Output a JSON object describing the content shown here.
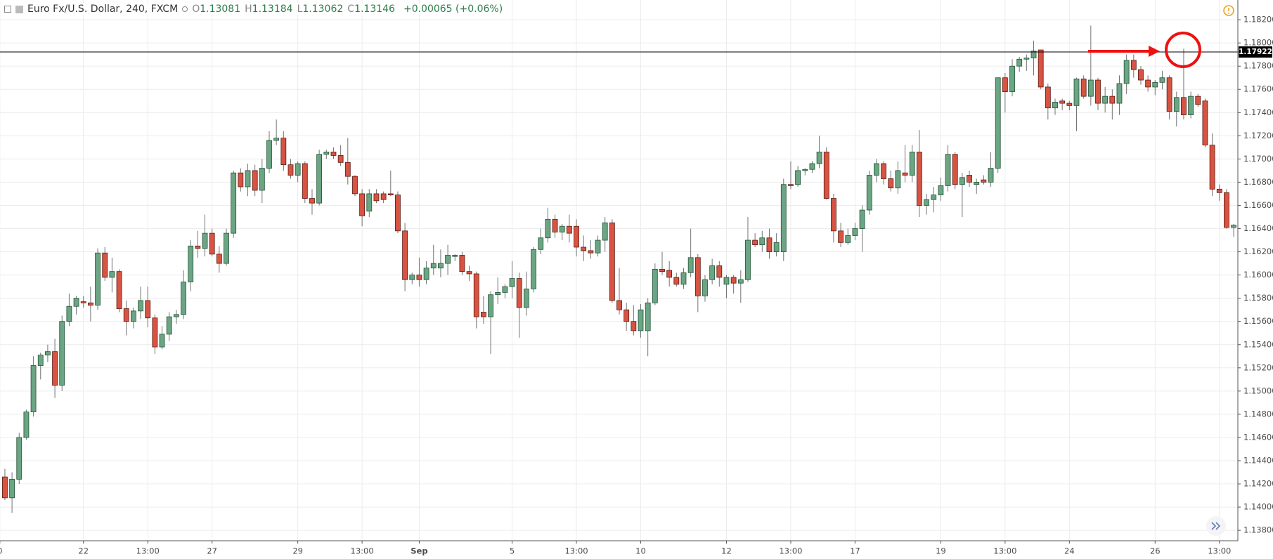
{
  "chart_data": {
    "type": "candlestick",
    "title": "Euro Fx/U.S. Dollar, 240, FXCM",
    "ohlc": [
      {
        "key": "O",
        "value": "1.13081"
      },
      {
        "key": "H",
        "value": "1.13184"
      },
      {
        "key": "L",
        "value": "1.13062"
      },
      {
        "key": "C",
        "value": "1.13146"
      }
    ],
    "change": "+0.00065 (+0.06%)",
    "up_color": "#6ba583",
    "down_color": "#d75442",
    "ylim": [
      1.1371,
      1.1837
    ],
    "yticks": [
      {
        "value": 1.138,
        "label": "1.13800"
      },
      {
        "value": 1.14,
        "label": "1.14000"
      },
      {
        "value": 1.142,
        "label": "1.14200"
      },
      {
        "value": 1.144,
        "label": "1.14400"
      },
      {
        "value": 1.146,
        "label": "1.14600"
      },
      {
        "value": 1.148,
        "label": "1.14800"
      },
      {
        "value": 1.15,
        "label": "1.15000"
      },
      {
        "value": 1.152,
        "label": "1.15200"
      },
      {
        "value": 1.154,
        "label": "1.15400"
      },
      {
        "value": 1.156,
        "label": "1.15600"
      },
      {
        "value": 1.158,
        "label": "1.15800"
      },
      {
        "value": 1.16,
        "label": "1.16000"
      },
      {
        "value": 1.162,
        "label": "1.16200"
      },
      {
        "value": 1.164,
        "label": "1.16400"
      },
      {
        "value": 1.166,
        "label": "1.16600"
      },
      {
        "value": 1.168,
        "label": "1.16800"
      },
      {
        "value": 1.17,
        "label": "1.17000"
      },
      {
        "value": 1.172,
        "label": "1.17200"
      },
      {
        "value": 1.174,
        "label": "1.17400"
      },
      {
        "value": 1.176,
        "label": "1.17600"
      },
      {
        "value": 1.178,
        "label": "1.17800"
      },
      {
        "value": 1.18,
        "label": "1.18000"
      },
      {
        "value": 1.182,
        "label": "1.18200"
      }
    ],
    "xticks": [
      {
        "value": -0.7,
        "label": "0"
      },
      {
        "value": 11,
        "label": "22"
      },
      {
        "value": 20,
        "label": "13:00"
      },
      {
        "value": 29,
        "label": "27"
      },
      {
        "value": 41,
        "label": "29"
      },
      {
        "value": 50,
        "label": "13:00"
      },
      {
        "value": 58,
        "label": "Sep"
      },
      {
        "value": 71,
        "label": "5"
      },
      {
        "value": 80,
        "label": "13:00"
      },
      {
        "value": 89,
        "label": "10"
      },
      {
        "value": 101,
        "label": "12"
      },
      {
        "value": 110,
        "label": "13:00"
      },
      {
        "value": 119,
        "label": "17"
      },
      {
        "value": 131,
        "label": "19"
      },
      {
        "value": 140,
        "label": "13:00"
      },
      {
        "value": 149,
        "label": "24"
      },
      {
        "value": 161,
        "label": "26"
      },
      {
        "value": 170,
        "label": "13:00"
      }
    ],
    "grid": true,
    "hline": {
      "value": 1.17922,
      "label": "1.17922"
    },
    "open": [
      1.1426,
      1.1408,
      1.1424,
      1.146,
      1.1482,
      1.1522,
      1.1531,
      1.1534,
      1.1505,
      1.156,
      1.1573,
      1.1577,
      1.1576,
      1.1574,
      1.1619,
      1.1598,
      1.1603,
      1.1571,
      1.156,
      1.1569,
      1.1578,
      1.1563,
      1.1538,
      1.1549,
      1.1564,
      1.1566,
      1.1594,
      1.1625,
      1.1623,
      1.1636,
      1.1618,
      1.161,
      1.1636,
      1.1688,
      1.1676,
      1.169,
      1.1673,
      1.1692,
      1.1716,
      1.1718,
      1.1695,
      1.1686,
      1.1696,
      1.1666,
      1.1662,
      1.1704,
      1.1706,
      1.1703,
      1.1697,
      1.1685,
      1.167,
      1.1655,
      1.167,
      1.167,
      1.167,
      1.1669,
      1.1638,
      1.1596,
      1.16,
      1.1596,
      1.1606,
      1.1606,
      1.161,
      1.1616,
      1.1617,
      1.1603,
      1.1601,
      1.1568,
      1.1564,
      1.1583,
      1.1585,
      1.159,
      1.1597,
      1.1572,
      1.1588,
      1.1622,
      1.1632,
      1.1648,
      1.1637,
      1.1642,
      1.1642,
      1.1624,
      1.1621,
      1.1619,
      1.163,
      1.1645,
      1.1578,
      1.157,
      1.156,
      1.1552,
      1.1552,
      1.1576,
      1.1605,
      1.1604,
      1.1598,
      1.1592,
      1.1602,
      1.1615,
      1.1582,
      1.1596,
      1.1608,
      1.1592,
      1.1598,
      1.1593,
      1.1596,
      1.163,
      1.1626,
      1.1632,
      1.162,
      1.162,
      1.1678,
      1.1678,
      1.169,
      1.1691,
      1.1696,
      1.1706,
      1.1666,
      1.1638,
      1.1628,
      1.1634,
      1.164,
      1.1656,
      1.1686,
      1.1696,
      1.1683,
      1.1675,
      1.1688,
      1.1686,
      1.1706,
      1.166,
      1.1665,
      1.1669,
      1.1677,
      1.1704,
      1.1678,
      1.1686,
      1.1678,
      1.1682,
      1.168,
      1.1692,
      1.177,
      1.1758,
      1.178,
      1.1786,
      1.1787,
      1.1794,
      1.1762,
      1.1744,
      1.175,
      1.1748,
      1.1746,
      1.1769,
      1.1754,
      1.1768,
      1.1748,
      1.1754,
      1.1748,
      1.1765,
      1.1785,
      1.1777,
      1.1768,
      1.1762,
      1.1766,
      1.177,
      1.1741,
      1.1753,
      1.1738,
      1.1754,
      1.175,
      1.1712,
      1.1674,
      1.1671,
      1.1641
    ],
    "high": [
      1.1433,
      1.143,
      1.1464,
      1.1484,
      1.153,
      1.1533,
      1.154,
      1.1545,
      1.1565,
      1.1584,
      1.1582,
      1.1582,
      1.159,
      1.1623,
      1.1624,
      1.1615,
      1.1605,
      1.1578,
      1.1572,
      1.159,
      1.159,
      1.1566,
      1.1556,
      1.1568,
      1.157,
      1.1604,
      1.163,
      1.1638,
      1.1652,
      1.164,
      1.1625,
      1.164,
      1.169,
      1.1692,
      1.1696,
      1.1695,
      1.17,
      1.1724,
      1.1734,
      1.1724,
      1.17,
      1.1698,
      1.1698,
      1.1674,
      1.1708,
      1.1708,
      1.171,
      1.1712,
      1.1718,
      1.1686,
      1.1674,
      1.1674,
      1.1674,
      1.1672,
      1.169,
      1.1672,
      1.1645,
      1.1602,
      1.1615,
      1.1612,
      1.1626,
      1.1622,
      1.1626,
      1.1618,
      1.162,
      1.1608,
      1.1603,
      1.1582,
      1.1586,
      1.1598,
      1.1592,
      1.1612,
      1.1602,
      1.1603,
      1.1624,
      1.164,
      1.1658,
      1.1652,
      1.1644,
      1.1652,
      1.1648,
      1.1634,
      1.163,
      1.1634,
      1.165,
      1.1648,
      1.1606,
      1.1576,
      1.1574,
      1.1575,
      1.158,
      1.161,
      1.162,
      1.1612,
      1.1602,
      1.1606,
      1.164,
      1.1618,
      1.16,
      1.1614,
      1.1612,
      1.16,
      1.16,
      1.1604,
      1.165,
      1.1636,
      1.1638,
      1.164,
      1.1636,
      1.1683,
      1.1698,
      1.1694,
      1.1692,
      1.1698,
      1.172,
      1.171,
      1.167,
      1.1645,
      1.164,
      1.1645,
      1.166,
      1.169,
      1.17,
      1.1698,
      1.169,
      1.1698,
      1.1712,
      1.1712,
      1.1725,
      1.167,
      1.1676,
      1.1684,
      1.1712,
      1.1706,
      1.1688,
      1.169,
      1.1683,
      1.1686,
      1.1706,
      1.177,
      1.1774,
      1.1786,
      1.1788,
      1.179,
      1.1802,
      1.1794,
      1.1765,
      1.1752,
      1.1752,
      1.175,
      1.177,
      1.1772,
      1.1815,
      1.177,
      1.1762,
      1.176,
      1.1772,
      1.179,
      1.179,
      1.178,
      1.1772,
      1.1768,
      1.1776,
      1.1772,
      1.1758,
      1.1795,
      1.1758,
      1.1756,
      1.1752,
      1.1722,
      1.1678,
      1.1674,
      1.1644
    ],
    "low": [
      1.1406,
      1.1395,
      1.142,
      1.1458,
      1.1478,
      1.151,
      1.1525,
      1.1494,
      1.15,
      1.1556,
      1.1566,
      1.1572,
      1.156,
      1.157,
      1.1595,
      1.1585,
      1.1568,
      1.1548,
      1.1554,
      1.1562,
      1.1555,
      1.1532,
      1.1536,
      1.1543,
      1.1558,
      1.1562,
      1.1586,
      1.1615,
      1.1616,
      1.1616,
      1.1602,
      1.1608,
      1.1632,
      1.1672,
      1.1668,
      1.1668,
      1.1662,
      1.1688,
      1.1712,
      1.169,
      1.1683,
      1.168,
      1.1662,
      1.1652,
      1.166,
      1.17,
      1.17,
      1.1694,
      1.1678,
      1.1668,
      1.1642,
      1.165,
      1.1662,
      1.1662,
      1.1668,
      1.1636,
      1.1586,
      1.1592,
      1.159,
      1.1592,
      1.16,
      1.1598,
      1.16,
      1.1612,
      1.16,
      1.1595,
      1.1554,
      1.1558,
      1.1532,
      1.1575,
      1.158,
      1.158,
      1.1546,
      1.1565,
      1.1585,
      1.1618,
      1.1628,
      1.1632,
      1.163,
      1.1628,
      1.1616,
      1.1612,
      1.1614,
      1.1616,
      1.162,
      1.1576,
      1.1566,
      1.1552,
      1.1548,
      1.1546,
      1.153,
      1.1574,
      1.16,
      1.159,
      1.159,
      1.1588,
      1.1598,
      1.1568,
      1.1577,
      1.1592,
      1.159,
      1.158,
      1.1584,
      1.1576,
      1.1594,
      1.1624,
      1.162,
      1.1614,
      1.1616,
      1.1612,
      1.1674,
      1.1676,
      1.1686,
      1.1688,
      1.1692,
      1.1665,
      1.1628,
      1.1624,
      1.1626,
      1.163,
      1.162,
      1.1652,
      1.168,
      1.1678,
      1.1672,
      1.167,
      1.168,
      1.168,
      1.165,
      1.1652,
      1.1654,
      1.1664,
      1.1672,
      1.1674,
      1.165,
      1.1676,
      1.167,
      1.1678,
      1.1676,
      1.1688,
      1.174,
      1.1754,
      1.1775,
      1.1776,
      1.1772,
      1.176,
      1.1734,
      1.1738,
      1.1742,
      1.1742,
      1.1724,
      1.1752,
      1.1746,
      1.1742,
      1.174,
      1.1734,
      1.1738,
      1.1756,
      1.177,
      1.1764,
      1.1758,
      1.1755,
      1.176,
      1.1734,
      1.1728,
      1.1734,
      1.1735,
      1.1745,
      1.171,
      1.1668,
      1.1664,
      1.164,
      1.1633
    ],
    "close": [
      1.1408,
      1.1424,
      1.146,
      1.1482,
      1.1522,
      1.1531,
      1.1534,
      1.1505,
      1.156,
      1.1573,
      1.158,
      1.1576,
      1.1574,
      1.1619,
      1.1598,
      1.1603,
      1.1571,
      1.156,
      1.1569,
      1.1578,
      1.1563,
      1.1538,
      1.1549,
      1.1564,
      1.1566,
      1.1594,
      1.1625,
      1.1623,
      1.1636,
      1.1618,
      1.161,
      1.1636,
      1.1688,
      1.1676,
      1.169,
      1.1673,
      1.1692,
      1.1716,
      1.1718,
      1.1695,
      1.1686,
      1.1696,
      1.1666,
      1.1662,
      1.1704,
      1.1706,
      1.1703,
      1.1697,
      1.1685,
      1.167,
      1.1651,
      1.167,
      1.1664,
      1.1665,
      1.1669,
      1.1638,
      1.1596,
      1.16,
      1.1596,
      1.1606,
      1.161,
      1.161,
      1.1617,
      1.1617,
      1.1603,
      1.1601,
      1.1564,
      1.1564,
      1.1583,
      1.1585,
      1.159,
      1.1597,
      1.1572,
      1.1588,
      1.1622,
      1.1632,
      1.1648,
      1.1637,
      1.1642,
      1.1636,
      1.1624,
      1.1621,
      1.1619,
      1.163,
      1.1645,
      1.1578,
      1.157,
      1.156,
      1.1552,
      1.157,
      1.1576,
      1.1605,
      1.1603,
      1.1598,
      1.1592,
      1.1602,
      1.1615,
      1.1582,
      1.1596,
      1.1608,
      1.1598,
      1.1598,
      1.1593,
      1.1596,
      1.163,
      1.1626,
      1.1632,
      1.162,
      1.1628,
      1.1678,
      1.1677,
      1.169,
      1.1691,
      1.1696,
      1.1706,
      1.1666,
      1.1638,
      1.1628,
      1.1634,
      1.164,
      1.1656,
      1.1686,
      1.1696,
      1.1683,
      1.1675,
      1.169,
      1.1686,
      1.1706,
      1.166,
      1.1665,
      1.1669,
      1.1677,
      1.1704,
      1.1678,
      1.1684,
      1.168,
      1.168,
      1.168,
      1.1692,
      1.177,
      1.1758,
      1.178,
      1.1786,
      1.1787,
      1.1793,
      1.1762,
      1.1744,
      1.1749,
      1.1748,
      1.1746,
      1.1769,
      1.1754,
      1.1768,
      1.1748,
      1.1754,
      1.1748,
      1.1765,
      1.1785,
      1.1777,
      1.1768,
      1.1762,
      1.1766,
      1.177,
      1.1741,
      1.1753,
      1.1738,
      1.1754,
      1.1747,
      1.1712,
      1.1674,
      1.1671,
      1.1641,
      1.1643
    ]
  }
}
